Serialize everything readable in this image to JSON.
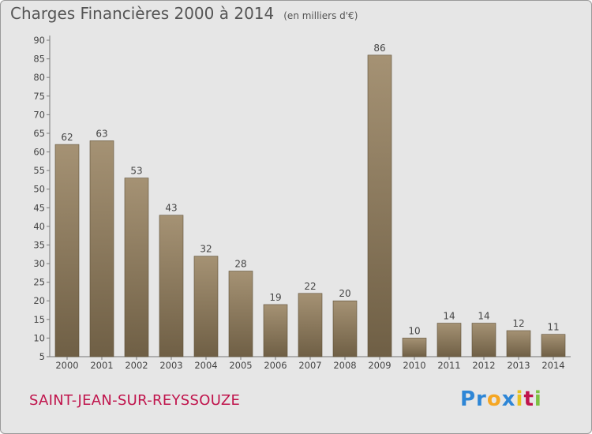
{
  "header": {
    "title": "Charges Financières 2000 à 2014",
    "unit": "(en milliers d'€)"
  },
  "footer": {
    "commune": "SAINT-JEAN-SUR-REYSSOUZE",
    "logo_parts": [
      "Pr",
      "o",
      "x",
      "i",
      "t",
      "i"
    ]
  },
  "colors": {
    "bar_top": "#a59274",
    "bar_bottom": "#6f5f45",
    "commune": "#c0144c",
    "logo": [
      "#2e86d6",
      "#f5a623",
      "#2e86d6",
      "#e8c21e",
      "#c0144c",
      "#7cc142"
    ]
  },
  "chart_data": {
    "type": "bar",
    "title": "Charges Financières 2000 à 2014",
    "categories": [
      "2000",
      "2001",
      "2002",
      "2003",
      "2004",
      "2005",
      "2006",
      "2007",
      "2008",
      "2009",
      "2010",
      "2011",
      "2012",
      "2013",
      "2014"
    ],
    "values": [
      62,
      63,
      53,
      43,
      32,
      28,
      19,
      22,
      20,
      86,
      10,
      14,
      14,
      12,
      11
    ],
    "ylim": [
      5,
      90
    ],
    "yticks": [
      5,
      10,
      15,
      20,
      25,
      30,
      35,
      40,
      45,
      50,
      55,
      60,
      65,
      70,
      75,
      80,
      85,
      90
    ],
    "grid": false,
    "legend": "none"
  }
}
